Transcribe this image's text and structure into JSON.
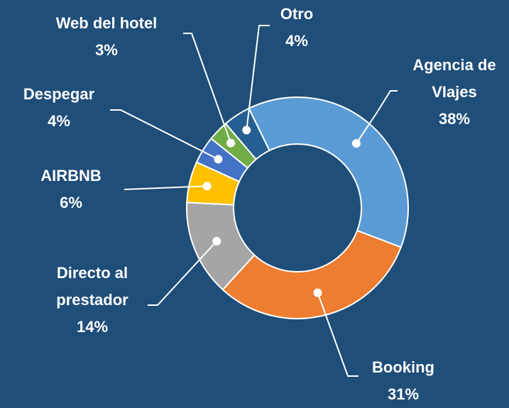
{
  "chart_data": {
    "type": "donut",
    "categories": [
      "Agencia de VIajes",
      "Booking",
      "Directo al prestador",
      "AIRBNB",
      "Despegar",
      "Web del hotel",
      "Otro"
    ],
    "values": [
      38,
      31,
      14,
      6,
      4,
      3,
      4
    ],
    "value_labels": [
      "38%",
      "31%",
      "14%",
      "6%",
      "4%",
      "3%",
      "4%"
    ],
    "colors": [
      "#5b9bd5",
      "#ed7d31",
      "#a5a5a5",
      "#ffc000",
      "#4472c4",
      "#70ad47",
      "#255e91"
    ]
  }
}
